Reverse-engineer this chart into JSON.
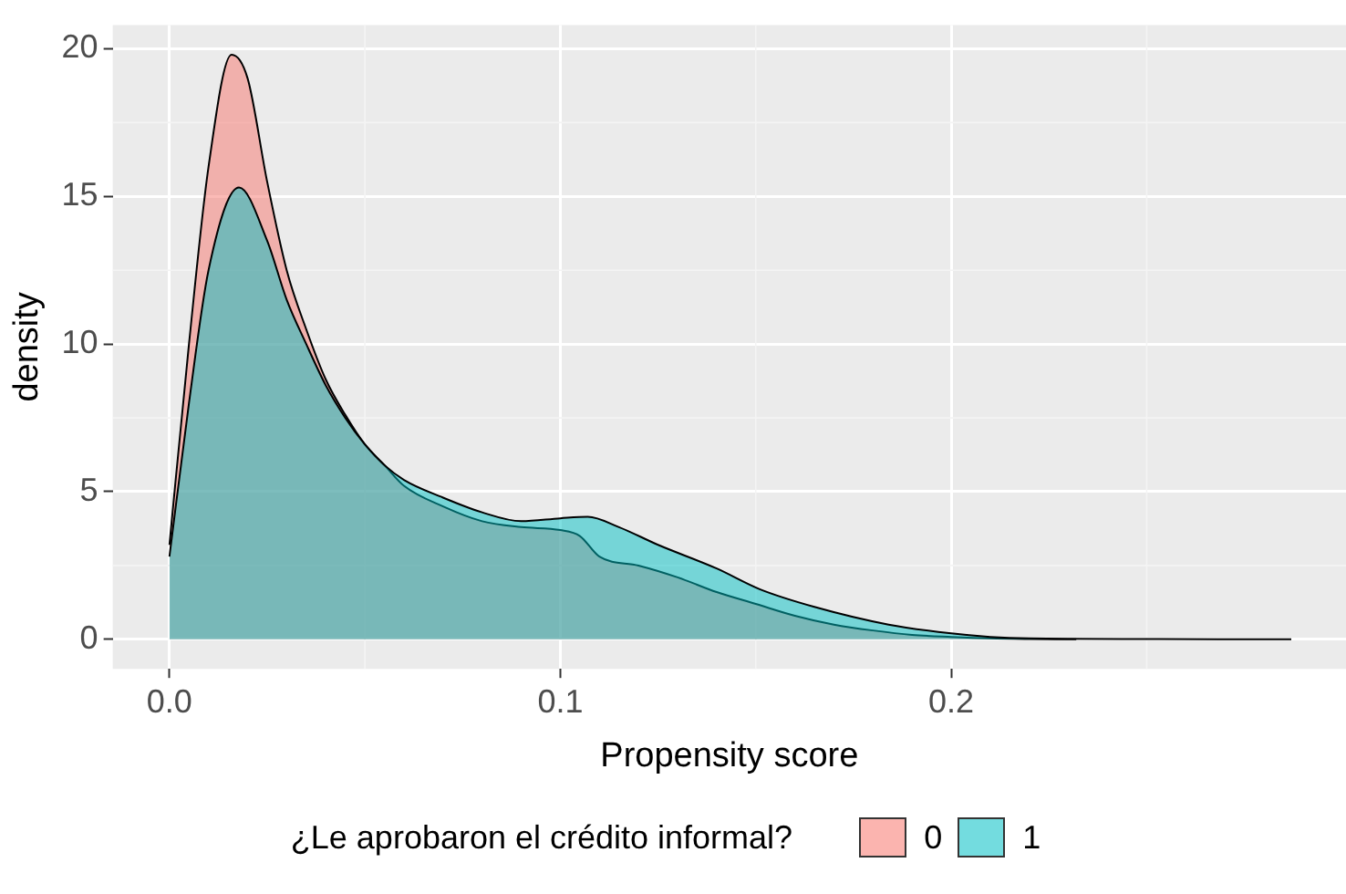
{
  "chart_data": {
    "type": "area",
    "xlabel": "Propensity score",
    "ylabel": "density",
    "legend_title": "¿Le aprobaron el crédito informal?",
    "legend": "bottom",
    "grid": true,
    "xlim": [
      -0.0145,
      0.301
    ],
    "ylim": [
      -1,
      20.8
    ],
    "xticks": [
      {
        "value": 0,
        "label": "0.0"
      },
      {
        "value": 0.1,
        "label": "0.1"
      },
      {
        "value": 0.2,
        "label": "0.2"
      }
    ],
    "yticks": [
      0,
      5,
      10,
      15,
      20
    ],
    "series": [
      {
        "name": "0",
        "color": "#f8766d",
        "x": [
          0,
          0.005,
          0.01,
          0.0159,
          0.02,
          0.025,
          0.03,
          0.035,
          0.04,
          0.045,
          0.05,
          0.055,
          0.06,
          0.07,
          0.08,
          0.09,
          0.1,
          0.105,
          0.11,
          0.12,
          0.13,
          0.14,
          0.15,
          0.16,
          0.17,
          0.18,
          0.19,
          0.2,
          0.21,
          0.22,
          0.232
        ],
        "values": [
          3.2,
          10,
          16,
          19.8,
          19,
          15.5,
          12.5,
          10.5,
          8.8,
          7.6,
          6.6,
          5.9,
          5.2,
          4.5,
          4.0,
          3.8,
          3.7,
          3.5,
          2.8,
          2.5,
          2.1,
          1.6,
          1.2,
          0.8,
          0.5,
          0.3,
          0.15,
          0.08,
          0.03,
          0.01,
          0
        ]
      },
      {
        "name": "1",
        "color": "#00bfc4",
        "x": [
          0,
          0.005,
          0.01,
          0.0178,
          0.025,
          0.03,
          0.035,
          0.04,
          0.045,
          0.05,
          0.055,
          0.06,
          0.07,
          0.08,
          0.09,
          0.1,
          0.107,
          0.115,
          0.125,
          0.14,
          0.151,
          0.165,
          0.184,
          0.2,
          0.21,
          0.22,
          0.25,
          0.287
        ],
        "values": [
          2.8,
          8,
          12.5,
          15.3,
          13.5,
          11.5,
          10,
          8.6,
          7.5,
          6.6,
          5.9,
          5.4,
          4.8,
          4.3,
          4.0,
          4.1,
          4.15,
          3.8,
          3.2,
          2.4,
          1.7,
          1.1,
          0.5,
          0.2,
          0.08,
          0.03,
          0.01,
          0
        ]
      }
    ]
  }
}
